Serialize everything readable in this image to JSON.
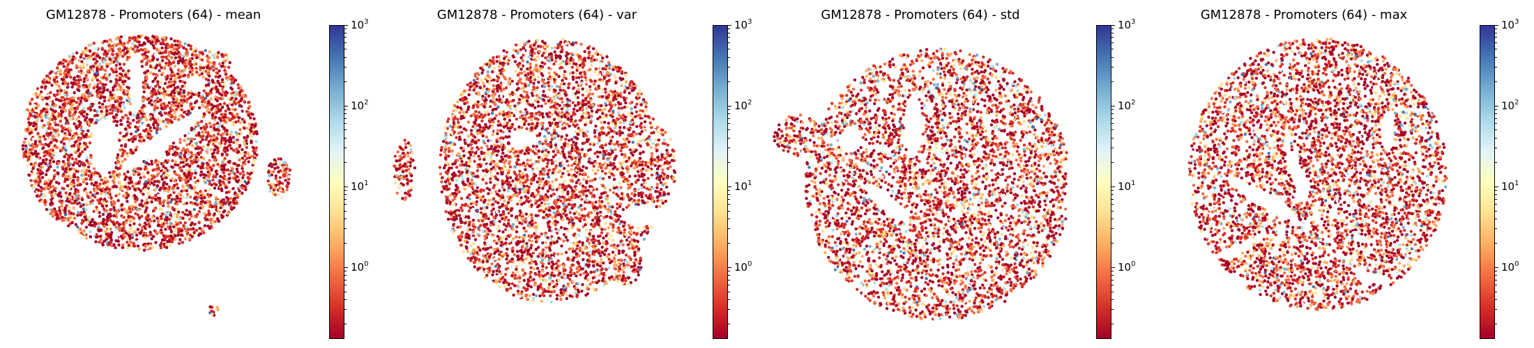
{
  "chart_data": [
    {
      "type": "scatter",
      "title": "GM12878 - Promoters (64) - mean",
      "colorbar": {
        "scale": "log",
        "range": [
          0.13,
          1000
        ],
        "ticks": [
          {
            "base": "10",
            "exp": "0",
            "value": 1
          },
          {
            "base": "10",
            "exp": "1",
            "value": 10
          },
          {
            "base": "10",
            "exp": "2",
            "value": 100
          },
          {
            "base": "10",
            "exp": "3",
            "value": 1000
          }
        ],
        "colormap": "RdYlBu"
      },
      "grid": false,
      "axes_visible": false
    },
    {
      "type": "scatter",
      "title": "GM12878 - Promoters (64) - var",
      "colorbar": {
        "scale": "log",
        "range": [
          0.13,
          1000
        ],
        "ticks": [
          {
            "base": "10",
            "exp": "0",
            "value": 1
          },
          {
            "base": "10",
            "exp": "1",
            "value": 10
          },
          {
            "base": "10",
            "exp": "2",
            "value": 100
          },
          {
            "base": "10",
            "exp": "3",
            "value": 1000
          }
        ],
        "colormap": "RdYlBu"
      },
      "grid": false,
      "axes_visible": false
    },
    {
      "type": "scatter",
      "title": "GM12878 - Promoters (64) - std",
      "colorbar": {
        "scale": "log",
        "range": [
          0.13,
          1000
        ],
        "ticks": [
          {
            "base": "10",
            "exp": "0",
            "value": 1
          },
          {
            "base": "10",
            "exp": "1",
            "value": 10
          },
          {
            "base": "10",
            "exp": "2",
            "value": 100
          },
          {
            "base": "10",
            "exp": "3",
            "value": 1000
          }
        ],
        "colormap": "RdYlBu"
      },
      "grid": false,
      "axes_visible": false
    },
    {
      "type": "scatter",
      "title": "GM12878 - Promoters (64) - max",
      "colorbar": {
        "scale": "log",
        "range": [
          0.13,
          1000
        ],
        "ticks": [
          {
            "base": "10",
            "exp": "0",
            "value": 1
          },
          {
            "base": "10",
            "exp": "1",
            "value": 10
          },
          {
            "base": "10",
            "exp": "2",
            "value": 100
          },
          {
            "base": "10",
            "exp": "3",
            "value": 1000
          }
        ],
        "colormap": "RdYlBu"
      },
      "grid": false,
      "axes_visible": false
    }
  ],
  "colors": {
    "colormap_stops": [
      "#a50026",
      "#d73027",
      "#f46d43",
      "#fdae61",
      "#fee090",
      "#ffffbf",
      "#e0f3f8",
      "#abd9e9",
      "#74add1",
      "#4575b4",
      "#313695"
    ]
  }
}
